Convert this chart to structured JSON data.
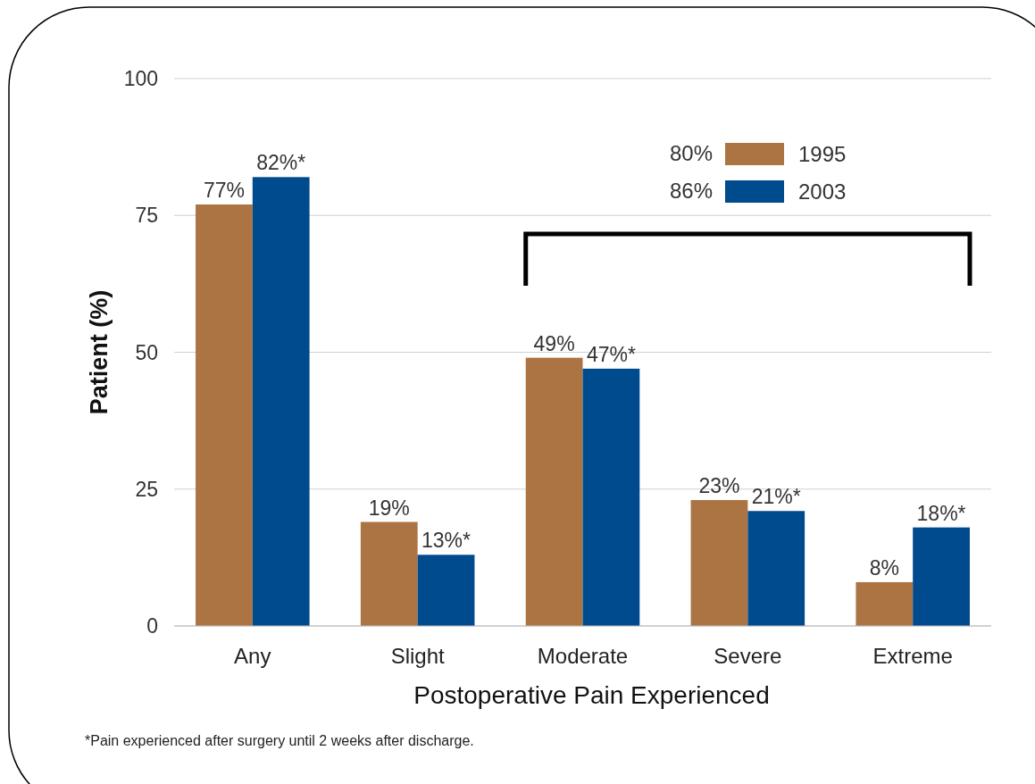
{
  "chart_data": {
    "type": "bar",
    "xlabel": "Postoperative Pain Experienced",
    "ylabel": "Patient (%)",
    "categories": [
      "Any",
      "Slight",
      "Moderate",
      "Severe",
      "Extreme"
    ],
    "series": [
      {
        "name": "1995",
        "color": "#ad7443",
        "values": [
          77,
          19,
          49,
          23,
          8
        ],
        "value_labels": [
          "77%",
          "19%",
          "49%",
          "23%",
          "8%"
        ]
      },
      {
        "name": "2003",
        "color": "#004a8e",
        "values": [
          82,
          13,
          47,
          21,
          18
        ],
        "value_labels": [
          "82%*",
          "13%*",
          "47%*",
          "21%*",
          "18%*"
        ]
      }
    ],
    "ylim": [
      0,
      100
    ],
    "yticks": [
      0,
      25,
      50,
      75,
      100
    ],
    "grid": "y",
    "legend": "top right",
    "annotations": [
      "80%",
      "86%",
      "*Pain experienced after surgery until 2 weeks after discharge."
    ]
  }
}
